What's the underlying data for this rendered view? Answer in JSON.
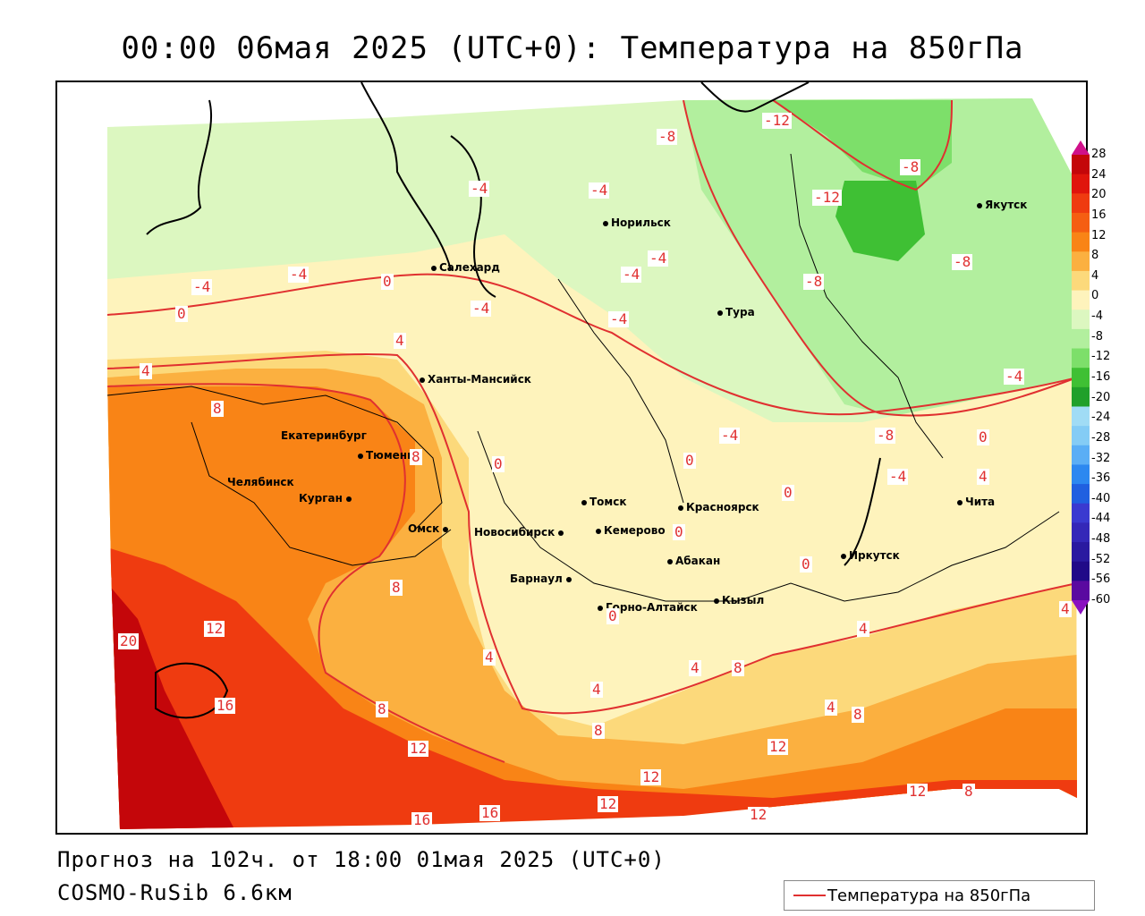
{
  "title": "00:00 06мая 2025 (UTC+0): Температура на 850гПа",
  "footer": {
    "forecast": "Прогноз на 102ч. от 18:00 01мая 2025 (UTC+0)",
    "model": "COSMO-RuSib 6.6км"
  },
  "legend": {
    "label": "Температура на 850гПа",
    "line_color": "#e03030"
  },
  "colorbar": {
    "ticks": [
      "28",
      "24",
      "20",
      "16",
      "12",
      "8",
      "4",
      "0",
      "-4",
      "-8",
      "-12",
      "-16",
      "-20",
      "-24",
      "-28",
      "-32",
      "-36",
      "-40",
      "-44",
      "-48",
      "-52",
      "-56",
      "-60"
    ],
    "colors": [
      "#c4060a",
      "#e0150c",
      "#ef3b10",
      "#f55e12",
      "#f98416",
      "#fbb040",
      "#fcd97b",
      "#fef3bc",
      "#dcf7c0",
      "#b2ef9e",
      "#7ddf6a",
      "#3fc034",
      "#20a02a",
      "#a0dcf5",
      "#84ccf5",
      "#5aaef5",
      "#2c88f0",
      "#2060e0",
      "#3a3ad0",
      "#3428b8",
      "#2a1aa0",
      "#200a88",
      "#5a0aa0"
    ]
  },
  "cities": [
    {
      "name": "Салехард",
      "dot": "dot"
    },
    {
      "name": "Норильск",
      "dot": "dot"
    },
    {
      "name": "Якутск",
      "dot": "dot"
    },
    {
      "name": "Тура",
      "dot": "dot"
    },
    {
      "name": "Ханты-Мансийск",
      "dot": "dot"
    },
    {
      "name": "Екатеринбург",
      "dot": "dot"
    },
    {
      "name": "Тюмень",
      "dot": "dot"
    },
    {
      "name": "Челябинск",
      "dot": "dot"
    },
    {
      "name": "Курган",
      "dot": "dot"
    },
    {
      "name": "Омск",
      "dot": "dot"
    },
    {
      "name": "Томск",
      "dot": "dot"
    },
    {
      "name": "Красноярск",
      "dot": "dot"
    },
    {
      "name": "Новосибирск",
      "dot": "dot"
    },
    {
      "name": "Кемерово",
      "dot": "dot"
    },
    {
      "name": "Абакан",
      "dot": "dot"
    },
    {
      "name": "Барнаул",
      "dot": "dot"
    },
    {
      "name": "Горно-Алтайск",
      "dot": "dot"
    },
    {
      "name": "Кызыл",
      "dot": "dot"
    },
    {
      "name": "Иркутск",
      "dot": "dot"
    },
    {
      "name": "Чита",
      "dot": "dot"
    }
  ],
  "contour_labels": [
    "-12",
    "-12",
    "-8",
    "-8",
    "-8",
    "-8",
    "-4",
    "-4",
    "-4",
    "-4",
    "-4",
    "-4",
    "-4",
    "-4",
    "-4",
    "-4",
    "-4",
    "-8",
    "0",
    "0",
    "0",
    "0",
    "0",
    "0",
    "0",
    "0",
    "0",
    "4",
    "4",
    "4",
    "4",
    "4",
    "4",
    "4",
    "4",
    "4",
    "8",
    "8",
    "8",
    "8",
    "8",
    "8",
    "8",
    "8",
    "12",
    "12",
    "12",
    "12",
    "12",
    "12",
    "12",
    "16",
    "16",
    "16",
    "20"
  ]
}
